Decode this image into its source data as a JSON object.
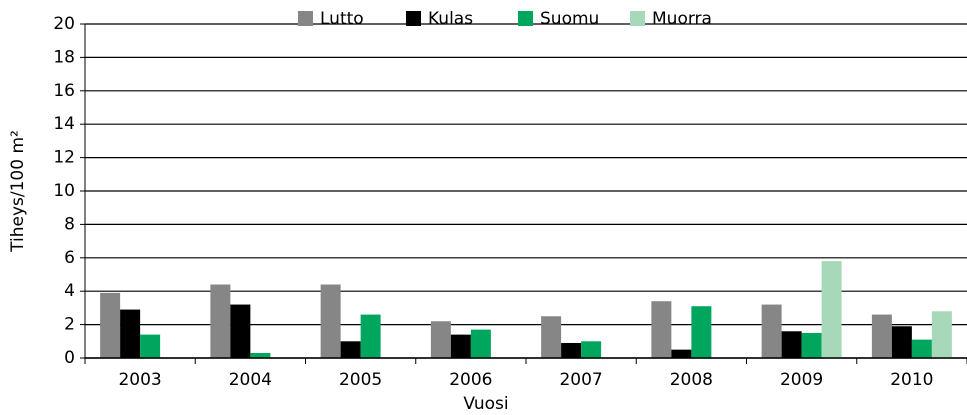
{
  "chart_data": {
    "type": "bar",
    "categories": [
      "2003",
      "2004",
      "2005",
      "2006",
      "2007",
      "2008",
      "2009",
      "2010"
    ],
    "series": [
      {
        "name": "Lutto",
        "color": "#868686",
        "values": [
          3.9,
          4.4,
          4.4,
          2.2,
          2.5,
          3.4,
          3.2,
          2.6
        ]
      },
      {
        "name": "Kulas",
        "color": "#000000",
        "values": [
          2.9,
          3.2,
          1.0,
          1.4,
          0.9,
          0.5,
          1.6,
          1.9
        ]
      },
      {
        "name": "Suomu",
        "color": "#00a65d",
        "values": [
          1.4,
          0.3,
          2.6,
          1.7,
          1.0,
          3.1,
          1.5,
          1.1
        ]
      },
      {
        "name": "Muorra",
        "color": "#a6d8b9",
        "values": [
          null,
          null,
          null,
          null,
          null,
          null,
          5.8,
          2.8
        ]
      }
    ],
    "ylabel": "Tiheys/100 m²",
    "xlabel": "Vuosi",
    "ylim": [
      0,
      20
    ],
    "yticks": [
      0,
      2,
      4,
      6,
      8,
      10,
      12,
      14,
      16,
      18,
      20
    ],
    "grid": true,
    "legend": "top"
  }
}
